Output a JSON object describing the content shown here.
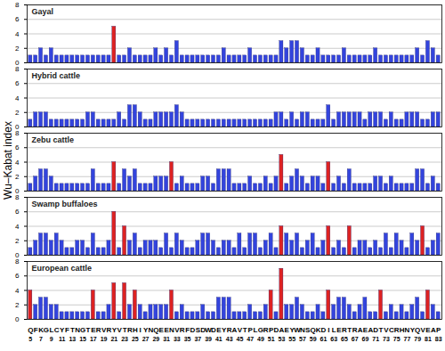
{
  "chart_data": {
    "type": "bar",
    "ylabel": "Wu–Kabat index",
    "categories": [
      "Q",
      "F",
      "K",
      "G",
      "L",
      "C",
      "Y",
      "F",
      "T",
      "N",
      "G",
      "T",
      "E",
      "R",
      "V",
      "R",
      "Y",
      "V",
      "T",
      "R",
      "H",
      "I",
      "Y",
      "N",
      "Q",
      "E",
      "E",
      "N",
      "V",
      "R",
      "F",
      "D",
      "S",
      "D",
      "W",
      "D",
      "E",
      "Y",
      "R",
      "A",
      "V",
      "T",
      "P",
      "L",
      "G",
      "R",
      "P",
      "D",
      "A",
      "E",
      "Y",
      "W",
      "N",
      "S",
      "Q",
      "K",
      "D",
      "I",
      "L",
      "E",
      "R",
      "T",
      "R",
      "A",
      "E",
      "A",
      "D",
      "T",
      "V",
      "C",
      "R",
      "H",
      "N",
      "Y",
      "Q",
      "V",
      "E",
      "A",
      "P"
    ],
    "positions": [
      5,
      6,
      7,
      8,
      9,
      10,
      11,
      12,
      13,
      14,
      15,
      16,
      17,
      18,
      19,
      20,
      21,
      22,
      23,
      24,
      25,
      26,
      27,
      28,
      29,
      30,
      31,
      32,
      33,
      34,
      35,
      36,
      37,
      38,
      39,
      40,
      41,
      42,
      43,
      44,
      45,
      46,
      47,
      48,
      49,
      50,
      51,
      52,
      53,
      54,
      55,
      56,
      57,
      58,
      59,
      60,
      61,
      62,
      63,
      64,
      65,
      66,
      67,
      68,
      69,
      70,
      71,
      72,
      73,
      74,
      75,
      76,
      77,
      78,
      79,
      80,
      81,
      82,
      83
    ],
    "position_ticks": [
      5,
      7,
      9,
      11,
      13,
      15,
      17,
      19,
      21,
      23,
      25,
      27,
      29,
      31,
      33,
      35,
      37,
      39,
      41,
      43,
      45,
      47,
      49,
      51,
      53,
      55,
      57,
      59,
      61,
      63,
      65,
      67,
      69,
      71,
      73,
      75,
      77,
      79,
      81,
      83
    ],
    "ylim": [
      0,
      8
    ],
    "yticks": [
      0,
      2,
      4,
      6,
      8
    ],
    "grid": true,
    "series": [
      {
        "name": "Gayal",
        "values": [
          1,
          1,
          2,
          1,
          2,
          1,
          1,
          1,
          1,
          1,
          1,
          1,
          1,
          1,
          1,
          1,
          5,
          1,
          1,
          2,
          1,
          1,
          1,
          1,
          2,
          1,
          2,
          1,
          3,
          1,
          1,
          1,
          1,
          1,
          1,
          1,
          1,
          2,
          1,
          1,
          1,
          1,
          2,
          1,
          1,
          1,
          1,
          1,
          3,
          2,
          3,
          3,
          2,
          1,
          1,
          2,
          1,
          1,
          1,
          1,
          2,
          1,
          1,
          1,
          1,
          1,
          2,
          1,
          1,
          1,
          1,
          1,
          1,
          1,
          2,
          1,
          3,
          2,
          1
        ],
        "colors": [
          "#3344dd",
          "#3344dd",
          "#3344dd",
          "#3344dd",
          "#3344dd",
          "#3344dd",
          "#3344dd",
          "#3344dd",
          "#3344dd",
          "#3344dd",
          "#3344dd",
          "#3344dd",
          "#3344dd",
          "#3344dd",
          "#3344dd",
          "#3344dd",
          "#dd2222",
          "#3344dd",
          "#3344dd",
          "#3344dd",
          "#3344dd",
          "#3344dd",
          "#3344dd",
          "#3344dd",
          "#3344dd",
          "#3344dd",
          "#3344dd",
          "#3344dd",
          "#3344dd",
          "#3344dd",
          "#3344dd",
          "#3344dd",
          "#3344dd",
          "#3344dd",
          "#3344dd",
          "#3344dd",
          "#3344dd",
          "#3344dd",
          "#3344dd",
          "#3344dd",
          "#3344dd",
          "#3344dd",
          "#3344dd",
          "#3344dd",
          "#3344dd",
          "#3344dd",
          "#3344dd",
          "#3344dd",
          "#3344dd",
          "#3344dd",
          "#3344dd",
          "#3344dd",
          "#3344dd",
          "#3344dd",
          "#3344dd",
          "#3344dd",
          "#3344dd",
          "#3344dd",
          "#3344dd",
          "#3344dd",
          "#3344dd",
          "#3344dd",
          "#3344dd",
          "#3344dd",
          "#3344dd",
          "#3344dd",
          "#3344dd",
          "#3344dd",
          "#3344dd",
          "#3344dd",
          "#3344dd",
          "#3344dd",
          "#3344dd",
          "#3344dd",
          "#3344dd",
          "#3344dd",
          "#3344dd",
          "#3344dd",
          "#3344dd"
        ]
      },
      {
        "name": "Hybrid cattle",
        "values": [
          1,
          2,
          2,
          2,
          1,
          1,
          1,
          1,
          1,
          1,
          1,
          2,
          2,
          1,
          1,
          1,
          1,
          2,
          1,
          3,
          3,
          2,
          1,
          1,
          2,
          2,
          2,
          2,
          3,
          2,
          1,
          1,
          1,
          1,
          1,
          1,
          1,
          1,
          1,
          1,
          1,
          1,
          1,
          1,
          1,
          1,
          1,
          2,
          2,
          1,
          2,
          1,
          2,
          2,
          1,
          1,
          1,
          3,
          1,
          2,
          2,
          2,
          2,
          2,
          1,
          2,
          2,
          2,
          1,
          2,
          1,
          1,
          2,
          2,
          2,
          1,
          1,
          2,
          2
        ],
        "colors": [
          "#3344dd",
          "#3344dd",
          "#3344dd",
          "#3344dd",
          "#3344dd",
          "#3344dd",
          "#3344dd",
          "#3344dd",
          "#3344dd",
          "#3344dd",
          "#3344dd",
          "#3344dd",
          "#3344dd",
          "#3344dd",
          "#3344dd",
          "#3344dd",
          "#3344dd",
          "#3344dd",
          "#3344dd",
          "#3344dd",
          "#3344dd",
          "#3344dd",
          "#3344dd",
          "#3344dd",
          "#3344dd",
          "#3344dd",
          "#3344dd",
          "#3344dd",
          "#3344dd",
          "#3344dd",
          "#3344dd",
          "#3344dd",
          "#3344dd",
          "#3344dd",
          "#3344dd",
          "#3344dd",
          "#3344dd",
          "#3344dd",
          "#3344dd",
          "#3344dd",
          "#3344dd",
          "#3344dd",
          "#3344dd",
          "#3344dd",
          "#3344dd",
          "#3344dd",
          "#3344dd",
          "#3344dd",
          "#3344dd",
          "#3344dd",
          "#3344dd",
          "#3344dd",
          "#3344dd",
          "#3344dd",
          "#3344dd",
          "#3344dd",
          "#3344dd",
          "#3344dd",
          "#3344dd",
          "#3344dd",
          "#3344dd",
          "#3344dd",
          "#3344dd",
          "#3344dd",
          "#3344dd",
          "#3344dd",
          "#3344dd",
          "#3344dd",
          "#3344dd",
          "#3344dd",
          "#3344dd",
          "#3344dd",
          "#3344dd",
          "#3344dd",
          "#3344dd",
          "#3344dd",
          "#3344dd",
          "#3344dd",
          "#3344dd"
        ]
      },
      {
        "name": "Zebu cattle",
        "values": [
          1,
          2,
          3,
          3,
          2,
          1,
          1,
          1,
          1,
          1,
          1,
          1,
          3,
          1,
          1,
          1,
          4,
          1,
          3,
          2,
          3,
          1,
          1,
          1,
          2,
          2,
          2,
          4,
          1,
          2,
          1,
          1,
          1,
          2,
          2,
          1,
          3,
          3,
          3,
          1,
          1,
          1,
          2,
          1,
          1,
          2,
          1,
          2,
          5,
          1,
          2,
          3,
          2,
          1,
          2,
          2,
          1,
          4,
          1,
          2,
          1,
          3,
          1,
          1,
          1,
          1,
          2,
          2,
          1,
          2,
          1,
          1,
          1,
          1,
          3,
          3,
          1,
          2,
          1
        ],
        "colors": [
          "#3344dd",
          "#3344dd",
          "#3344dd",
          "#3344dd",
          "#3344dd",
          "#3344dd",
          "#3344dd",
          "#3344dd",
          "#3344dd",
          "#3344dd",
          "#3344dd",
          "#3344dd",
          "#3344dd",
          "#3344dd",
          "#3344dd",
          "#3344dd",
          "#dd2222",
          "#3344dd",
          "#3344dd",
          "#3344dd",
          "#3344dd",
          "#3344dd",
          "#3344dd",
          "#3344dd",
          "#3344dd",
          "#3344dd",
          "#3344dd",
          "#dd2222",
          "#3344dd",
          "#3344dd",
          "#3344dd",
          "#3344dd",
          "#3344dd",
          "#3344dd",
          "#3344dd",
          "#3344dd",
          "#3344dd",
          "#3344dd",
          "#3344dd",
          "#3344dd",
          "#3344dd",
          "#3344dd",
          "#3344dd",
          "#3344dd",
          "#3344dd",
          "#3344dd",
          "#3344dd",
          "#3344dd",
          "#dd2222",
          "#3344dd",
          "#3344dd",
          "#3344dd",
          "#3344dd",
          "#3344dd",
          "#3344dd",
          "#3344dd",
          "#3344dd",
          "#dd2222",
          "#3344dd",
          "#3344dd",
          "#3344dd",
          "#3344dd",
          "#3344dd",
          "#3344dd",
          "#3344dd",
          "#3344dd",
          "#3344dd",
          "#3344dd",
          "#3344dd",
          "#3344dd",
          "#3344dd",
          "#3344dd",
          "#3344dd",
          "#3344dd",
          "#3344dd",
          "#3344dd",
          "#3344dd",
          "#3344dd",
          "#3344dd"
        ]
      },
      {
        "name": "Swamp buffaloes",
        "values": [
          1,
          2,
          3,
          3,
          2,
          3,
          2,
          1,
          1,
          2,
          2,
          1,
          3,
          1,
          1,
          2,
          6,
          1,
          4,
          2,
          3,
          1,
          2,
          2,
          2,
          1,
          3,
          1,
          3,
          2,
          1,
          1,
          2,
          3,
          3,
          2,
          1,
          2,
          2,
          1,
          3,
          1,
          3,
          3,
          1,
          2,
          3,
          1,
          4,
          3,
          2,
          3,
          1,
          2,
          3,
          1,
          2,
          4,
          1,
          2,
          1,
          4,
          1,
          2,
          2,
          1,
          2,
          1,
          3,
          1,
          3,
          2,
          1,
          3,
          2,
          4,
          1,
          2,
          3
        ],
        "colors": [
          "#3344dd",
          "#3344dd",
          "#3344dd",
          "#3344dd",
          "#3344dd",
          "#3344dd",
          "#3344dd",
          "#3344dd",
          "#3344dd",
          "#3344dd",
          "#3344dd",
          "#3344dd",
          "#3344dd",
          "#3344dd",
          "#3344dd",
          "#3344dd",
          "#dd2222",
          "#3344dd",
          "#dd2222",
          "#3344dd",
          "#3344dd",
          "#3344dd",
          "#3344dd",
          "#3344dd",
          "#3344dd",
          "#3344dd",
          "#3344dd",
          "#3344dd",
          "#3344dd",
          "#3344dd",
          "#3344dd",
          "#3344dd",
          "#3344dd",
          "#3344dd",
          "#3344dd",
          "#3344dd",
          "#3344dd",
          "#3344dd",
          "#3344dd",
          "#3344dd",
          "#3344dd",
          "#3344dd",
          "#3344dd",
          "#3344dd",
          "#3344dd",
          "#3344dd",
          "#3344dd",
          "#3344dd",
          "#dd2222",
          "#3344dd",
          "#3344dd",
          "#3344dd",
          "#3344dd",
          "#3344dd",
          "#3344dd",
          "#3344dd",
          "#3344dd",
          "#dd2222",
          "#3344dd",
          "#3344dd",
          "#3344dd",
          "#dd2222",
          "#3344dd",
          "#3344dd",
          "#3344dd",
          "#3344dd",
          "#3344dd",
          "#3344dd",
          "#3344dd",
          "#3344dd",
          "#3344dd",
          "#3344dd",
          "#3344dd",
          "#3344dd",
          "#3344dd",
          "#dd2222",
          "#3344dd",
          "#3344dd",
          "#3344dd"
        ]
      },
      {
        "name": "European cattle",
        "values": [
          4,
          2,
          3,
          3,
          2,
          2,
          1,
          1,
          1,
          1,
          1,
          1,
          4,
          1,
          1,
          2,
          5,
          1,
          5,
          2,
          4,
          2,
          1,
          2,
          2,
          2,
          2,
          4,
          1,
          2,
          1,
          1,
          1,
          2,
          1,
          1,
          3,
          3,
          3,
          1,
          1,
          1,
          2,
          1,
          1,
          2,
          4,
          1,
          7,
          2,
          2,
          3,
          2,
          1,
          1,
          2,
          1,
          4,
          2,
          3,
          3,
          2,
          1,
          2,
          3,
          1,
          1,
          4,
          1,
          2,
          1,
          2,
          1,
          2,
          3,
          1,
          4,
          2,
          1
        ],
        "colors": [
          "#dd2222",
          "#3344dd",
          "#3344dd",
          "#3344dd",
          "#3344dd",
          "#3344dd",
          "#3344dd",
          "#3344dd",
          "#3344dd",
          "#3344dd",
          "#3344dd",
          "#3344dd",
          "#dd2222",
          "#3344dd",
          "#3344dd",
          "#3344dd",
          "#dd2222",
          "#3344dd",
          "#dd2222",
          "#3344dd",
          "#dd2222",
          "#3344dd",
          "#3344dd",
          "#3344dd",
          "#3344dd",
          "#3344dd",
          "#3344dd",
          "#dd2222",
          "#3344dd",
          "#3344dd",
          "#3344dd",
          "#3344dd",
          "#3344dd",
          "#3344dd",
          "#3344dd",
          "#3344dd",
          "#3344dd",
          "#3344dd",
          "#3344dd",
          "#3344dd",
          "#3344dd",
          "#3344dd",
          "#3344dd",
          "#3344dd",
          "#3344dd",
          "#3344dd",
          "#dd2222",
          "#3344dd",
          "#dd2222",
          "#3344dd",
          "#3344dd",
          "#3344dd",
          "#3344dd",
          "#3344dd",
          "#3344dd",
          "#3344dd",
          "#3344dd",
          "#dd2222",
          "#3344dd",
          "#3344dd",
          "#3344dd",
          "#3344dd",
          "#3344dd",
          "#3344dd",
          "#3344dd",
          "#3344dd",
          "#3344dd",
          "#dd2222",
          "#3344dd",
          "#3344dd",
          "#3344dd",
          "#3344dd",
          "#3344dd",
          "#3344dd",
          "#3344dd",
          "#3344dd",
          "#dd2222",
          "#3344dd",
          "#3344dd"
        ]
      }
    ]
  }
}
